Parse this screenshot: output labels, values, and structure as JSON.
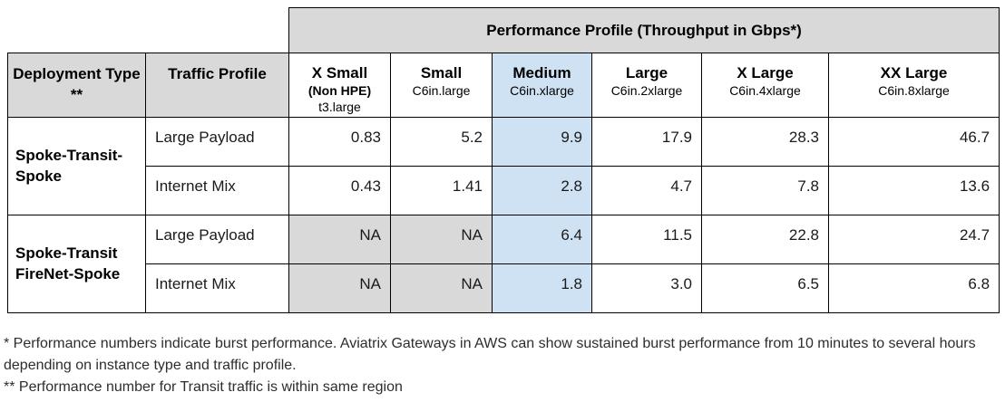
{
  "colors": {
    "gray": "#d9d9d9",
    "blue": "#cfe2f3",
    "border": "#000000"
  },
  "table": {
    "banner": "Performance Profile (Throughput in Gbps*)",
    "corner_headers": [
      "Deployment Type **",
      "Traffic Profile"
    ],
    "columns": [
      {
        "name": "X Small",
        "sub": "(Non HPE)",
        "sub2": "t3.large",
        "highlighted": false
      },
      {
        "name": "Small",
        "sub": "C6in.large",
        "highlighted": false
      },
      {
        "name": "Medium",
        "sub": "C6in.xlarge",
        "highlighted": true
      },
      {
        "name": "Large",
        "sub": "C6in.2xlarge",
        "highlighted": false
      },
      {
        "name": "X Large",
        "sub": "C6in.4xlarge",
        "highlighted": false
      },
      {
        "name": "XX Large",
        "sub": "C6in.8xlarge",
        "highlighted": false
      }
    ],
    "groups": [
      {
        "deployment": "Spoke-Transit-Spoke",
        "rows": [
          {
            "traffic": "Large Payload",
            "values": [
              "0.83",
              "5.2",
              "9.9",
              "17.9",
              "28.3",
              "46.7"
            ]
          },
          {
            "traffic": "Internet Mix",
            "values": [
              "0.43",
              "1.41",
              "2.8",
              "4.7",
              "7.8",
              "13.6"
            ]
          }
        ]
      },
      {
        "deployment": "Spoke-Transit FireNet-Spoke",
        "rows": [
          {
            "traffic": "Large Payload",
            "values": [
              "NA",
              "NA",
              "6.4",
              "11.5",
              "22.8",
              "24.7"
            ]
          },
          {
            "traffic": "Internet Mix",
            "values": [
              "NA",
              "NA",
              "1.8",
              "3.0",
              "6.5",
              "6.8"
            ]
          }
        ]
      }
    ]
  },
  "footnotes": [
    "* Performance numbers indicate burst performance. Aviatrix Gateways in AWS can show sustained burst performance from 10 minutes to several hours depending on instance type and traffic profile.",
    "** Performance number for Transit traffic is within same region"
  ]
}
